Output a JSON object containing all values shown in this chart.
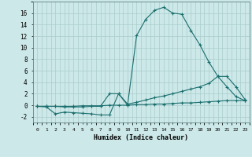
{
  "xlabel": "Humidex (Indice chaleur)",
  "background_color": "#cce8e8",
  "grid_color": "#aacccc",
  "line_color": "#1a6e6e",
  "xlim": [
    -0.5,
    23.5
  ],
  "ylim": [
    -3,
    18
  ],
  "curve1_x": [
    0,
    1,
    2,
    3,
    4,
    5,
    6,
    7,
    8,
    9,
    10,
    11,
    12,
    13,
    14,
    15,
    16,
    17,
    18,
    19,
    20,
    21,
    22,
    23
  ],
  "curve1_y": [
    -0.2,
    -0.3,
    -1.5,
    -1.2,
    -1.3,
    -1.4,
    -1.5,
    -1.7,
    -1.7,
    2.0,
    0.0,
    12.1,
    14.9,
    16.5,
    17.0,
    16.0,
    15.8,
    13.0,
    10.5,
    7.5,
    5.0,
    3.2,
    1.5,
    0.8
  ],
  "curve2_x": [
    0,
    1,
    2,
    3,
    4,
    5,
    6,
    7,
    8,
    9,
    10,
    11,
    12,
    13,
    14,
    15,
    16,
    17,
    18,
    19,
    20,
    21,
    22,
    23
  ],
  "curve2_y": [
    -0.2,
    -0.2,
    -0.2,
    -0.3,
    -0.3,
    -0.3,
    -0.2,
    -0.2,
    2.0,
    2.0,
    0.2,
    0.5,
    0.9,
    1.3,
    1.6,
    2.0,
    2.4,
    2.8,
    3.2,
    3.8,
    5.0,
    5.0,
    3.2,
    1.0
  ],
  "curve3_x": [
    0,
    1,
    2,
    3,
    4,
    5,
    6,
    7,
    8,
    9,
    10,
    11,
    12,
    13,
    14,
    15,
    16,
    17,
    18,
    19,
    20,
    21,
    22,
    23
  ],
  "curve3_y": [
    -0.2,
    -0.2,
    -0.2,
    -0.2,
    -0.2,
    -0.1,
    -0.1,
    -0.1,
    0.0,
    0.0,
    0.0,
    0.1,
    0.1,
    0.2,
    0.2,
    0.3,
    0.4,
    0.4,
    0.5,
    0.6,
    0.7,
    0.8,
    0.8,
    0.8
  ]
}
